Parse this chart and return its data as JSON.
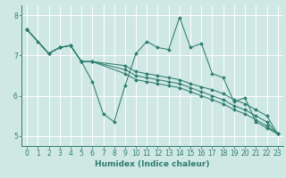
{
  "xlabel": "Humidex (Indice chaleur)",
  "bg_color": "#cfe8e4",
  "line_color": "#2e7d6e",
  "grid_color": "#ffffff",
  "xlim": [
    -0.5,
    23.5
  ],
  "ylim": [
    4.75,
    8.25
  ],
  "yticks": [
    5,
    6,
    7,
    8
  ],
  "xticks": [
    0,
    1,
    2,
    3,
    4,
    5,
    6,
    7,
    8,
    9,
    10,
    11,
    12,
    13,
    14,
    15,
    16,
    17,
    18,
    19,
    20,
    21,
    22,
    23
  ],
  "lines": [
    {
      "x": [
        0,
        1,
        2,
        3,
        4,
        5,
        6,
        7,
        8,
        9,
        10,
        11,
        12,
        13,
        14,
        15,
        16,
        17,
        18,
        19,
        20,
        21,
        22,
        23
      ],
      "y": [
        7.65,
        7.35,
        7.05,
        7.2,
        7.25,
        6.85,
        6.35,
        5.55,
        5.35,
        6.25,
        7.05,
        7.35,
        7.2,
        7.15,
        7.95,
        7.2,
        7.3,
        6.55,
        6.45,
        5.85,
        5.95,
        5.35,
        5.2,
        5.05
      ]
    },
    {
      "x": [
        0,
        2,
        3,
        4,
        5,
        6,
        9,
        10,
        11,
        12,
        13,
        14,
        15,
        16,
        17,
        18,
        19,
        20,
        21,
        22,
        23
      ],
      "y": [
        7.65,
        7.05,
        7.2,
        7.25,
        6.85,
        6.85,
        6.75,
        6.6,
        6.55,
        6.5,
        6.45,
        6.4,
        6.3,
        6.22,
        6.15,
        6.05,
        5.9,
        5.8,
        5.65,
        5.5,
        5.05
      ]
    },
    {
      "x": [
        0,
        2,
        3,
        4,
        5,
        6,
        9,
        10,
        11,
        12,
        13,
        14,
        15,
        16,
        17,
        18,
        19,
        20,
        21,
        22,
        23
      ],
      "y": [
        7.65,
        7.05,
        7.2,
        7.25,
        6.85,
        6.85,
        6.65,
        6.5,
        6.45,
        6.4,
        6.35,
        6.3,
        6.2,
        6.1,
        6.0,
        5.9,
        5.75,
        5.65,
        5.5,
        5.35,
        5.05
      ]
    },
    {
      "x": [
        0,
        2,
        3,
        4,
        5,
        6,
        9,
        10,
        11,
        12,
        13,
        14,
        15,
        16,
        17,
        18,
        19,
        20,
        21,
        22,
        23
      ],
      "y": [
        7.65,
        7.05,
        7.2,
        7.25,
        6.85,
        6.85,
        6.55,
        6.4,
        6.35,
        6.3,
        6.25,
        6.2,
        6.1,
        6.0,
        5.9,
        5.8,
        5.65,
        5.55,
        5.4,
        5.25,
        5.05
      ]
    }
  ]
}
